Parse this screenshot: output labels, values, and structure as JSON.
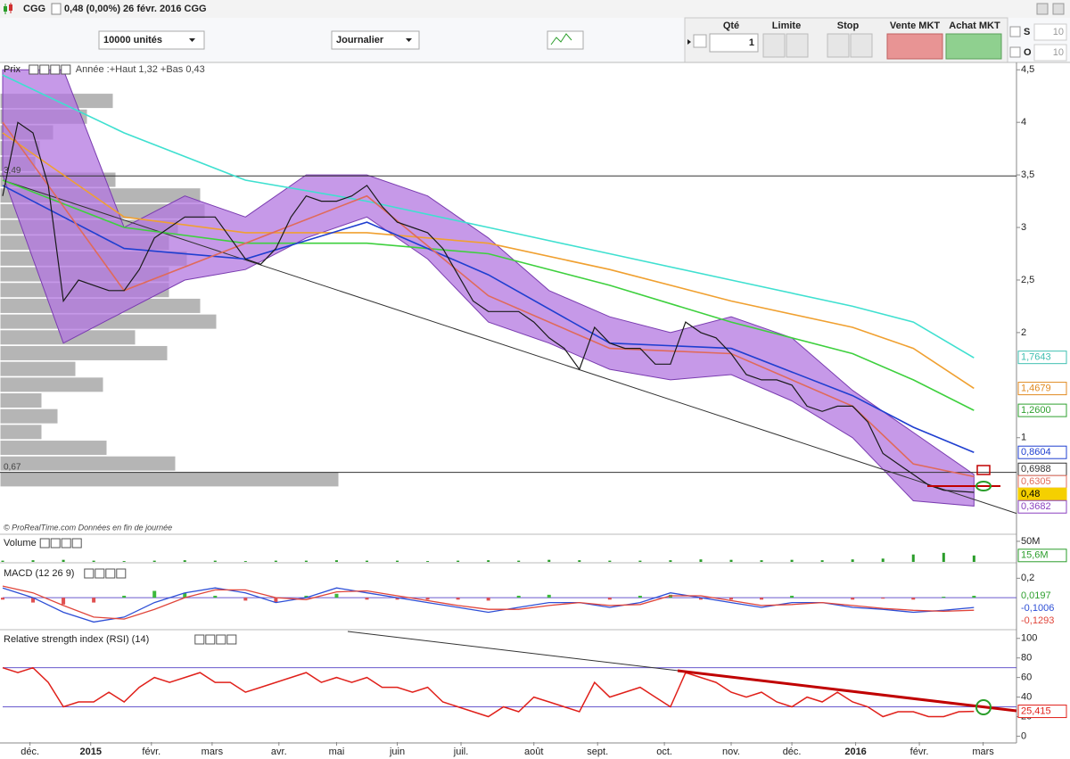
{
  "header": {
    "symbol": "CGG",
    "quote": "0,48 (0,00%) 26 févr. 2016 CGG"
  },
  "toolbar": {
    "quantity_select": "10000 unités",
    "period_select": "Journalier",
    "columns": [
      "Qté",
      "Limite",
      "Stop",
      "Vente MKT",
      "Achat MKT"
    ],
    "qty": 1,
    "s_label": "S",
    "o_label": "O",
    "s_value": 10,
    "o_value": 10
  },
  "chart_data": [
    {
      "type": "line",
      "title": "Prix",
      "subtitle": "Année :+Haut 1,32 +Bas 0,43",
      "source": "© ProRealTime.com  Données en fin de journée",
      "xlim": [
        0,
        334
      ],
      "ylim": [
        0.09,
        4.57
      ],
      "yticks": [
        {
          "value": 4.5,
          "label": "4,5"
        },
        4,
        {
          "value": 3.5,
          "label": "3,5"
        },
        3,
        {
          "value": 2.5,
          "label": "2,5"
        },
        2,
        1
      ],
      "x": [
        0,
        5,
        10,
        15,
        20,
        25,
        30,
        35,
        40,
        45,
        50,
        55,
        60,
        65,
        70,
        75,
        80,
        85,
        90,
        95,
        100,
        105,
        110,
        115,
        120,
        125,
        130,
        135,
        140,
        145,
        150,
        155,
        160,
        165,
        170,
        175,
        180,
        185,
        190,
        195,
        200,
        205,
        210,
        215,
        220,
        225,
        230,
        235,
        240,
        245,
        250,
        255,
        260,
        265,
        270,
        275,
        280,
        285,
        290,
        295,
        300,
        305,
        310,
        315,
        320
      ],
      "values": [
        3.3,
        4.0,
        3.9,
        3.4,
        2.3,
        2.5,
        2.45,
        2.4,
        2.4,
        2.6,
        2.9,
        3.0,
        3.1,
        3.1,
        3.1,
        2.9,
        2.7,
        2.65,
        2.8,
        3.1,
        3.3,
        3.25,
        3.25,
        3.3,
        3.4,
        3.2,
        3.05,
        3.0,
        2.95,
        2.8,
        2.55,
        2.3,
        2.2,
        2.2,
        2.2,
        2.1,
        1.95,
        1.85,
        1.65,
        2.05,
        1.9,
        1.85,
        1.85,
        1.7,
        1.7,
        2.1,
        2.0,
        1.95,
        1.8,
        1.6,
        1.55,
        1.55,
        1.5,
        1.3,
        1.25,
        1.3,
        1.3,
        1.15,
        0.85,
        0.75,
        0.65,
        0.55,
        0.5,
        0.49,
        0.48
      ],
      "color": "#1a1a1a",
      "bands": {
        "color": "#b377e0",
        "x": [
          0,
          20,
          40,
          60,
          80,
          100,
          120,
          140,
          160,
          180,
          200,
          220,
          240,
          260,
          280,
          300,
          320
        ],
        "upper": [
          4.5,
          4.5,
          3.0,
          3.3,
          3.1,
          3.5,
          3.5,
          3.3,
          2.9,
          2.4,
          2.15,
          2.0,
          2.15,
          1.95,
          1.45,
          1.05,
          0.65
        ],
        "lower": [
          3.5,
          1.9,
          2.2,
          2.5,
          2.6,
          2.9,
          3.1,
          2.7,
          2.1,
          1.9,
          1.65,
          1.55,
          1.6,
          1.35,
          1.0,
          0.4,
          0.35
        ]
      },
      "ma_x": [
        0,
        40,
        80,
        120,
        160,
        200,
        240,
        280,
        300,
        320
      ],
      "averages": [
        {
          "color": "#3fe0d0",
          "values": [
            4.45,
            3.9,
            3.45,
            3.25,
            3.0,
            2.75,
            2.5,
            2.25,
            2.1,
            1.76
          ]
        },
        {
          "color": "#f0a030",
          "values": [
            3.9,
            3.1,
            2.95,
            2.95,
            2.85,
            2.6,
            2.3,
            2.05,
            1.85,
            1.47
          ]
        },
        {
          "color": "#3ed03e",
          "values": [
            3.45,
            3.0,
            2.85,
            2.85,
            2.75,
            2.45,
            2.1,
            1.8,
            1.55,
            1.26
          ]
        },
        {
          "color": "#1f3fd0",
          "values": [
            3.4,
            2.8,
            2.7,
            3.05,
            2.55,
            1.9,
            1.85,
            1.4,
            1.1,
            0.86
          ]
        },
        {
          "color": "#e06a5a",
          "values": [
            4.0,
            2.4,
            2.85,
            3.3,
            2.35,
            1.85,
            1.8,
            1.3,
            0.75,
            0.63
          ]
        }
      ],
      "hlines": [
        {
          "value": 3.49,
          "label": "3,49"
        },
        {
          "value": 0.67,
          "label": "0,67"
        }
      ],
      "trendline": {
        "x": [
          0,
          334
        ],
        "values": [
          3.45,
          0.28
        ]
      },
      "profile": {
        "color": "#a8a8a8",
        "levels": [
          4.2,
          4.05,
          3.9,
          3.75,
          3.6,
          3.45,
          3.3,
          3.15,
          3.0,
          2.85,
          2.7,
          2.55,
          2.4,
          2.25,
          2.1,
          1.95,
          1.8,
          1.65,
          1.5,
          1.35,
          1.2,
          1.05,
          0.9,
          0.75,
          0.6
        ],
        "values": [
          127,
          98,
          60,
          45,
          40,
          130,
          225,
          230,
          200,
          190,
          210,
          190,
          190,
          225,
          243,
          152,
          188,
          85,
          116,
          47,
          65,
          47,
          120,
          197,
          380
        ]
      },
      "price_labels": [
        {
          "value": 1.7643,
          "label": "1,7643",
          "color": "#3fbfb0"
        },
        {
          "value": 1.4679,
          "label": "1,4679",
          "color": "#e08a20"
        },
        {
          "value": 1.26,
          "label": "1,2600",
          "color": "#2fa02f"
        },
        {
          "value": 0.8604,
          "label": "0,8604",
          "color": "#1f3fd0"
        },
        {
          "value": 0.6988,
          "label": "0,6988",
          "color": "#333333"
        },
        {
          "value": 0.6305,
          "label": "0,6305",
          "color": "#e06a5a"
        },
        {
          "value": 0.48,
          "label": "0,48",
          "color": "#f5d000"
        },
        {
          "value": 0.3682,
          "label": "0,3682",
          "color": "#8a40c0"
        }
      ]
    },
    {
      "type": "bar",
      "title": "Volume",
      "xlim": [
        0,
        334
      ],
      "ylim": [
        0,
        65000000
      ],
      "yticks": [
        {
          "value": 50000000,
          "label": "50M"
        }
      ],
      "color": "#2a9d2a",
      "x": [
        0,
        10,
        20,
        30,
        40,
        50,
        60,
        70,
        80,
        90,
        100,
        110,
        120,
        130,
        140,
        150,
        160,
        170,
        180,
        190,
        200,
        210,
        220,
        230,
        240,
        250,
        260,
        270,
        280,
        290,
        300,
        310,
        320
      ],
      "values": [
        3000000,
        4000000,
        5000000,
        3000000,
        2000000,
        3000000,
        4000000,
        3000000,
        2000000,
        3000000,
        3000000,
        4000000,
        3000000,
        3000000,
        2000000,
        3000000,
        4000000,
        3000000,
        5000000,
        4000000,
        3000000,
        3000000,
        4000000,
        6000000,
        5000000,
        4000000,
        5000000,
        4000000,
        6000000,
        8000000,
        18000000,
        22000000,
        15600000
      ],
      "last_label": {
        "value": 15600000,
        "label": "15,6M"
      }
    },
    {
      "type": "line",
      "title": "MACD (12 26 9)",
      "xlim": [
        0,
        334
      ],
      "ylim": [
        -0.32,
        0.35
      ],
      "yticks": [
        {
          "value": 0.2,
          "label": "0,2"
        }
      ],
      "x": [
        0,
        10,
        20,
        30,
        40,
        50,
        60,
        70,
        80,
        90,
        100,
        110,
        120,
        130,
        140,
        150,
        160,
        170,
        180,
        190,
        200,
        210,
        220,
        230,
        240,
        250,
        260,
        270,
        280,
        290,
        300,
        310,
        320
      ],
      "series": [
        {
          "color": "#2e4fd6",
          "values": [
            0.1,
            0.0,
            -0.15,
            -0.25,
            -0.2,
            -0.05,
            0.05,
            0.1,
            0.05,
            -0.05,
            0.0,
            0.1,
            0.05,
            0.0,
            -0.05,
            -0.1,
            -0.15,
            -0.1,
            -0.05,
            -0.05,
            -0.1,
            -0.05,
            0.05,
            0.0,
            -0.05,
            -0.1,
            -0.05,
            -0.05,
            -0.1,
            -0.12,
            -0.15,
            -0.13,
            -0.1006
          ]
        },
        {
          "color": "#e0453a",
          "values": [
            0.12,
            0.05,
            -0.08,
            -0.2,
            -0.22,
            -0.12,
            0.0,
            0.08,
            0.08,
            0.0,
            -0.02,
            0.06,
            0.07,
            0.02,
            -0.03,
            -0.08,
            -0.12,
            -0.12,
            -0.08,
            -0.05,
            -0.08,
            -0.07,
            0.02,
            0.02,
            -0.03,
            -0.08,
            -0.07,
            -0.05,
            -0.08,
            -0.11,
            -0.13,
            -0.14,
            -0.1293
          ]
        }
      ],
      "histogram": {
        "color": "#3cb93c",
        "negative_color": "#e05050",
        "values": [
          -0.02,
          -0.05,
          -0.07,
          -0.05,
          0.02,
          0.07,
          0.05,
          0.02,
          -0.03,
          -0.05,
          0.02,
          0.04,
          -0.02,
          -0.02,
          -0.02,
          -0.02,
          -0.03,
          0.02,
          0.03,
          0,
          -0.02,
          0.02,
          0.03,
          -0.02,
          -0.02,
          -0.02,
          0.02,
          0,
          -0.02,
          -0.01,
          -0.02,
          0.01,
          0.0197
        ]
      },
      "last_labels": [
        {
          "value": 0.0197,
          "label": "0,0197",
          "color": "#2fa02f"
        },
        {
          "value": -0.1006,
          "label": "-0,1006",
          "color": "#2e4fd6"
        },
        {
          "value": -0.1293,
          "label": "-0,1293",
          "color": "#e0453a"
        }
      ]
    },
    {
      "type": "line",
      "title": "Relative strength index (RSI) (14)",
      "xlim": [
        0,
        334
      ],
      "ylim": [
        -6,
        108
      ],
      "yticks": [
        0,
        20,
        40,
        60,
        80,
        100
      ],
      "levels": [
        70,
        30
      ],
      "color": "#e0201a",
      "x": [
        0,
        5,
        10,
        15,
        20,
        25,
        30,
        35,
        40,
        45,
        50,
        55,
        60,
        65,
        70,
        75,
        80,
        85,
        90,
        95,
        100,
        105,
        110,
        115,
        120,
        125,
        130,
        135,
        140,
        145,
        150,
        155,
        160,
        165,
        170,
        175,
        180,
        185,
        190,
        195,
        200,
        205,
        210,
        215,
        220,
        225,
        230,
        235,
        240,
        245,
        250,
        255,
        260,
        265,
        270,
        275,
        280,
        285,
        290,
        295,
        300,
        305,
        310,
        315,
        320
      ],
      "values": [
        70,
        65,
        70,
        55,
        30,
        35,
        35,
        45,
        35,
        50,
        60,
        55,
        60,
        65,
        55,
        55,
        45,
        50,
        55,
        60,
        65,
        55,
        60,
        55,
        60,
        50,
        50,
        45,
        50,
        35,
        30,
        25,
        20,
        30,
        25,
        40,
        35,
        30,
        25,
        55,
        40,
        45,
        50,
        40,
        30,
        65,
        60,
        55,
        45,
        40,
        45,
        35,
        30,
        40,
        35,
        45,
        35,
        30,
        20,
        25,
        25,
        20,
        20,
        25,
        25.415
      ],
      "last_label": {
        "value": 25.415,
        "label": "25,415"
      },
      "xticks": [
        {
          "value": 9,
          "label": "déc."
        },
        {
          "value": 29,
          "label": "2015"
        },
        {
          "value": 49,
          "label": "févr."
        },
        {
          "value": 69,
          "label": "mars"
        },
        {
          "value": 91,
          "label": "avr."
        },
        {
          "value": 110,
          "label": "mai"
        },
        {
          "value": 130,
          "label": "juin"
        },
        {
          "value": 151,
          "label": "juil."
        },
        {
          "value": 175,
          "label": "août"
        },
        {
          "value": 196,
          "label": "sept."
        },
        {
          "value": 218,
          "label": "oct."
        },
        {
          "value": 240,
          "label": "nov."
        },
        {
          "value": 260,
          "label": "déc."
        },
        {
          "value": 281,
          "label": "2016"
        },
        {
          "value": 302,
          "label": "févr."
        },
        {
          "value": 323,
          "label": "mars"
        }
      ]
    }
  ]
}
